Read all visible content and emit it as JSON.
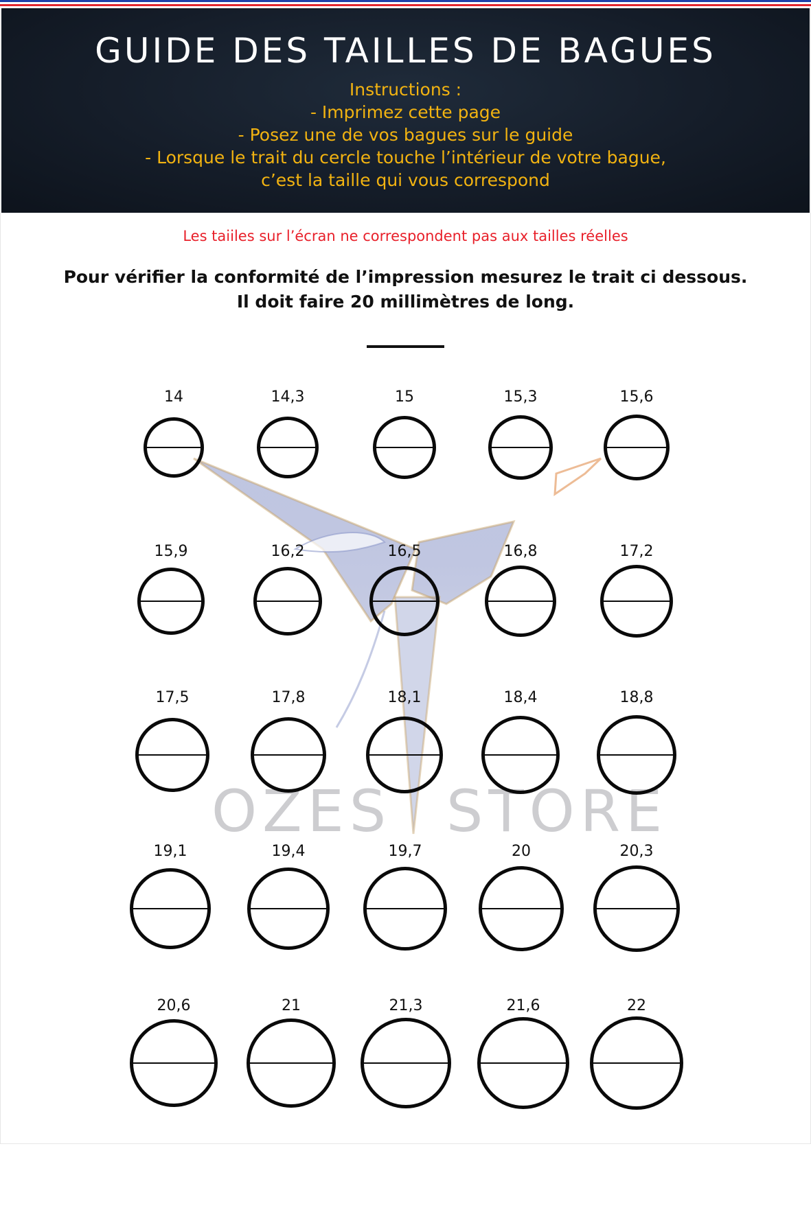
{
  "header": {
    "title": "GUIDE DES TAILLES DE BAGUES",
    "instructions": [
      "Instructions :",
      "- Imprimez cette page",
      "- Posez une de vos bagues sur le  guide",
      "- Lorsque le trait du cercle touche l’intérieur de votre bague,",
      "c’est la taille qui vous correspond"
    ]
  },
  "warning": "Les taiiles sur l’écran ne correspondent pas aux tailles réelles",
  "verify": {
    "line1": "Pour vérifier la conformité de l’impression mesurez le trait ci dessous.",
    "line2": "Il doit faire 20 millimètres de long."
  },
  "watermark": {
    "left": "OZES",
    "right": "STORE"
  },
  "colors": {
    "header_bg": "#151d29",
    "instructions": "#f2b311",
    "warning": "#e8202a",
    "flag_blue": "#1d3fa8",
    "flag_white": "#ffffff",
    "flag_red": "#e3262d"
  },
  "rings": [
    [
      "14",
      "14,3",
      "15",
      "15,3",
      "15,6"
    ],
    [
      "15,9",
      "16,2",
      "16,5",
      "16,8",
      "17,2"
    ],
    [
      "17,5",
      "17,8",
      "18,1",
      "18,4",
      "18,8"
    ],
    [
      "19,1",
      "19,4",
      "19,7",
      "20",
      "20,3"
    ],
    [
      "20,6",
      "21",
      "21,3",
      "21,6",
      "22"
    ]
  ]
}
